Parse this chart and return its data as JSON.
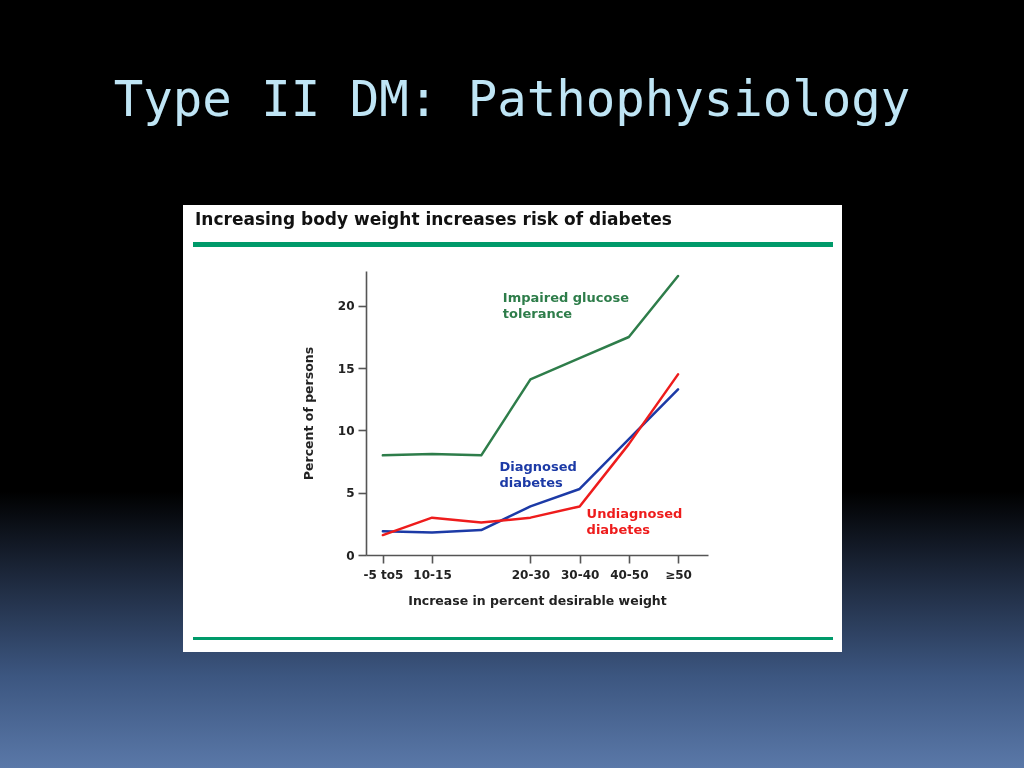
{
  "chart_data": {
    "type": "line",
    "title": "Type II DM: Pathophysiology",
    "subtitle": "Increasing body weight increases risk of diabetes",
    "xlabel": "Increase in percent desirable weight",
    "ylabel": "Percent of persons",
    "categories": [
      "-5 to5",
      "10-15",
      null,
      "20-30",
      "30-40",
      "40-50",
      "≥50"
    ],
    "ylim": [
      0,
      22.8
    ],
    "yticks": [
      0,
      5,
      10,
      15,
      20
    ],
    "series": [
      {
        "name": "Impaired glucose tolerance",
        "color": "#2e7d4a",
        "values": [
          8.0,
          8.1,
          8.0,
          14.1,
          15.8,
          17.5,
          22.4
        ]
      },
      {
        "name": "Diagnosed diabetes",
        "color": "#1c3aa6",
        "values": [
          1.9,
          1.8,
          2.0,
          3.9,
          5.3,
          9.3,
          13.3
        ]
      },
      {
        "name": "Undiagnosed diabetes",
        "color": "#ee1c1c",
        "values": [
          1.6,
          3.0,
          2.6,
          3.0,
          3.9,
          8.9,
          14.5
        ]
      }
    ]
  }
}
